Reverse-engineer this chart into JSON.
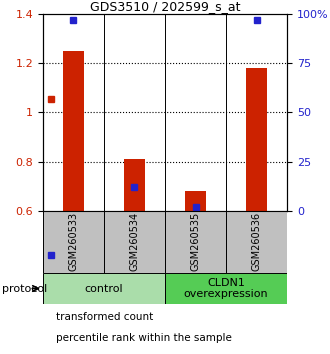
{
  "title": "GDS3510 / 202599_s_at",
  "samples": [
    "GSM260533",
    "GSM260534",
    "GSM260535",
    "GSM260536"
  ],
  "transformed_counts": [
    1.25,
    0.81,
    0.68,
    1.18
  ],
  "percentile_ranks": [
    97,
    12,
    2,
    97
  ],
  "bar_bottom": 0.6,
  "ylim_left": [
    0.6,
    1.4
  ],
  "ylim_right": [
    0,
    100
  ],
  "yticks_left": [
    0.6,
    0.8,
    1.0,
    1.2,
    1.4
  ],
  "ytick_labels_left": [
    "0.6",
    "0.8",
    "1",
    "1.2",
    "1.4"
  ],
  "yticks_right": [
    0,
    25,
    50,
    75,
    100
  ],
  "ytick_labels_right": [
    "0",
    "25",
    "50",
    "75",
    "100%"
  ],
  "groups": [
    {
      "label": "control",
      "samples": [
        0,
        1
      ],
      "color": "#aaddaa"
    },
    {
      "label": "CLDN1\noverexpression",
      "samples": [
        2,
        3
      ],
      "color": "#55cc55"
    }
  ],
  "bar_color": "#cc2200",
  "percentile_color": "#2222cc",
  "bg_color": "#c0c0c0",
  "legend_items": [
    {
      "label": "transformed count",
      "color": "#cc2200"
    },
    {
      "label": "percentile rank within the sample",
      "color": "#2222cc"
    }
  ],
  "protocol_label": "protocol"
}
